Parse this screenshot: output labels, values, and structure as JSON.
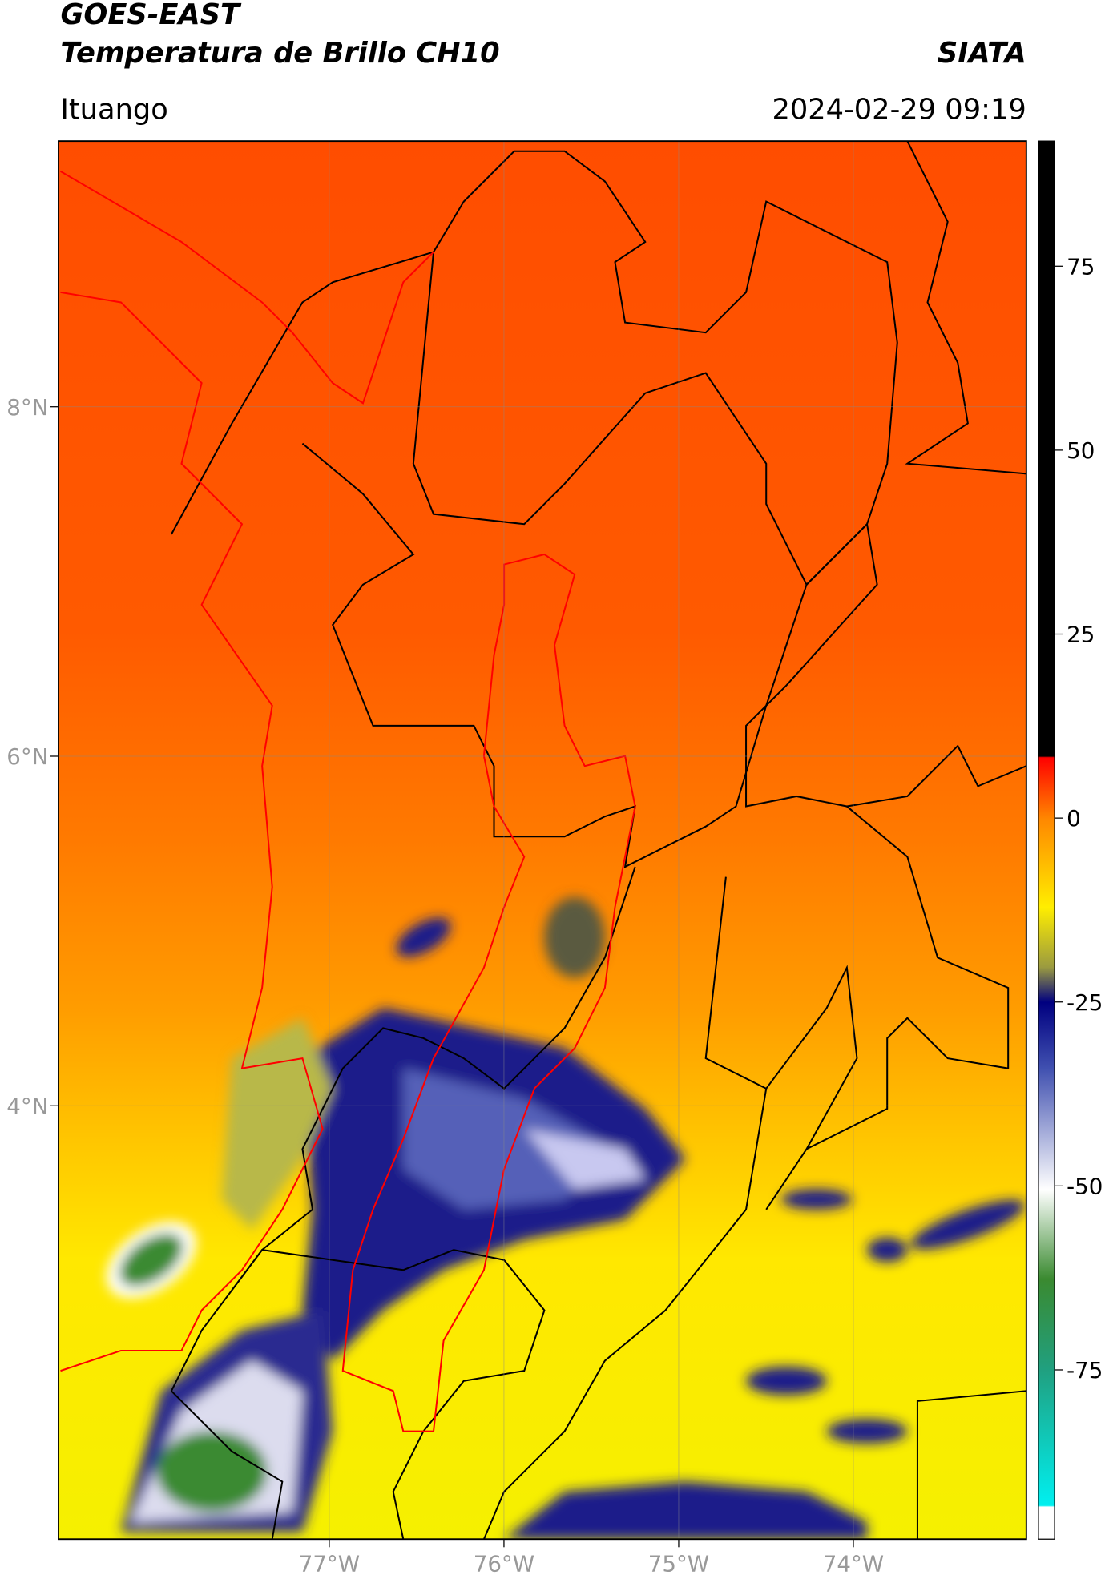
{
  "header": {
    "title_line1": "GOES-EAST",
    "title_line2": "Temperatura de Brillo CH10",
    "org": "SIATA",
    "location": "Ituango",
    "datetime": "2024-02-29 09:19"
  },
  "map": {
    "xlim": [
      -78.55,
      -73.01
    ],
    "ylim": [
      1.52,
      9.52
    ],
    "xticks": [
      {
        "value": -77,
        "label": "77°W"
      },
      {
        "value": -76,
        "label": "76°W"
      },
      {
        "value": -75,
        "label": "75°W"
      },
      {
        "value": -74,
        "label": "74°W"
      }
    ],
    "yticks": [
      {
        "value": 8,
        "label": "8°N"
      },
      {
        "value": 6,
        "label": "6°N"
      },
      {
        "value": 4,
        "label": "4°N"
      }
    ],
    "grid": true
  },
  "colorbar": {
    "ylim": [
      -98,
      92
    ],
    "yticks": [
      75,
      50,
      25,
      0,
      -25,
      -50,
      -75
    ]
  }
}
